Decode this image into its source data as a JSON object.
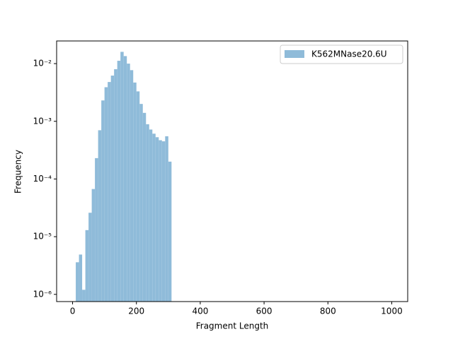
{
  "chart_data": {
    "type": "histogram",
    "xlabel": "Fragment Length",
    "ylabel": "Frequency",
    "bins": [
      0,
      10,
      20,
      30,
      40,
      50,
      60,
      70,
      80,
      90,
      100,
      110,
      120,
      130,
      140,
      150,
      160,
      170,
      180,
      190,
      200,
      210,
      220,
      230,
      240,
      250,
      260,
      270,
      280,
      290,
      300,
      310,
      320,
      330,
      340,
      350,
      360,
      370,
      380,
      390,
      400,
      410,
      420,
      430,
      440,
      450,
      460,
      470,
      480,
      490,
      500,
      510,
      520,
      530,
      540,
      550,
      560,
      570,
      580,
      590,
      600,
      610,
      620,
      630,
      640,
      650,
      660,
      670,
      680,
      690,
      700,
      710,
      720,
      730,
      740,
      750,
      760,
      770,
      780,
      790,
      800,
      810,
      820,
      830,
      840,
      850,
      860,
      870,
      880,
      890,
      900,
      910,
      920,
      930,
      940,
      950,
      960,
      970,
      980,
      990,
      1000
    ],
    "series": [
      {
        "name": "K562MNase20.6U",
        "color": "#8fbbd9",
        "values": [
          0,
          3.6e-06,
          4.9e-06,
          1.2e-06,
          1.3e-05,
          2.6e-05,
          6.7e-05,
          0.00023,
          0.0007,
          0.0023,
          0.0039,
          0.0048,
          0.0062,
          0.008,
          0.0112,
          0.016,
          0.0135,
          0.01,
          0.0077,
          0.0047,
          0.0033,
          0.002,
          0.0014,
          0.00089,
          0.00072,
          0.00061,
          0.00053,
          0.00047,
          0.00045,
          0.00055,
          0.0002,
          0,
          0,
          0,
          0,
          0,
          0,
          0,
          0,
          0,
          0,
          0,
          0,
          0,
          0,
          0,
          0,
          0,
          0,
          0,
          0,
          0,
          0,
          0,
          0,
          0,
          0,
          0,
          0,
          0,
          0,
          0,
          0,
          0,
          0,
          0,
          0,
          0,
          0,
          0,
          0,
          0,
          0,
          0,
          0,
          0,
          0,
          0,
          0,
          0,
          0,
          0,
          0,
          0,
          0,
          0,
          0,
          0,
          0,
          0,
          0,
          0,
          0,
          0,
          0,
          0,
          0,
          0,
          0,
          0
        ]
      }
    ],
    "xlim": [
      -50,
      1050
    ],
    "xticks": [
      0,
      200,
      400,
      600,
      800,
      1000
    ],
    "ylim": [
      7.5e-07,
      0.0247
    ],
    "yscale": "log",
    "yticks": [
      {
        "value": 1e-06,
        "label": "10⁻⁶"
      },
      {
        "value": 1e-05,
        "label": "10⁻⁵"
      },
      {
        "value": 0.0001,
        "label": "10⁻⁴"
      },
      {
        "value": 0.001,
        "label": "10⁻³"
      },
      {
        "value": 0.01,
        "label": "10⁻²"
      }
    ],
    "legend": "upper right"
  }
}
